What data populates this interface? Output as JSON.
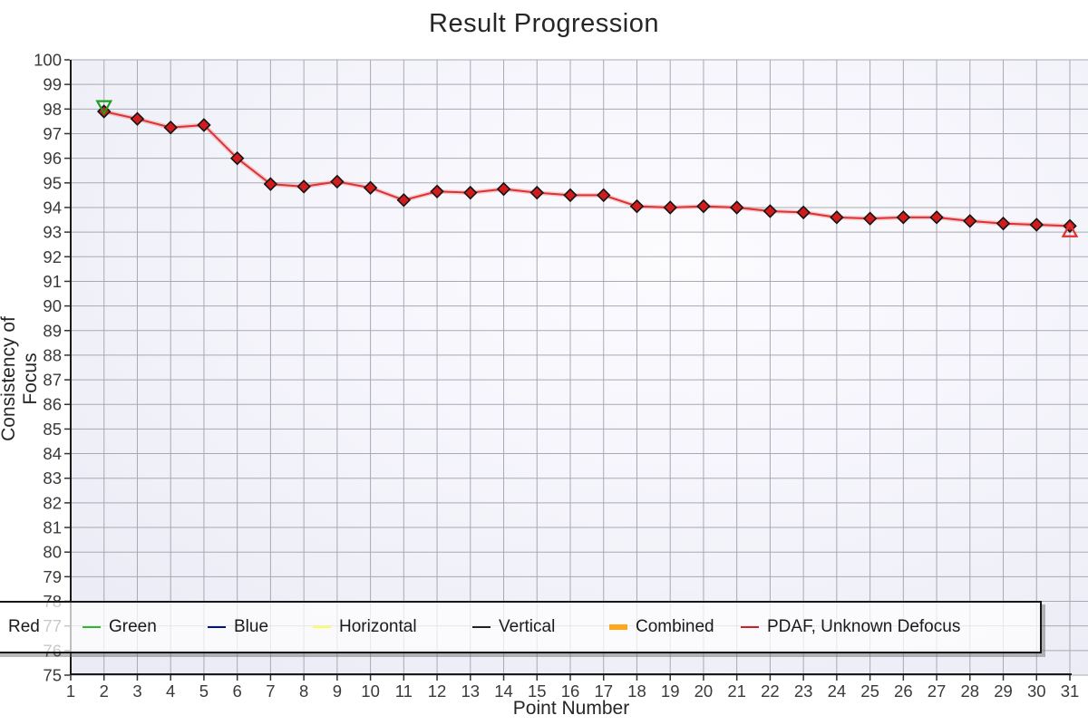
{
  "title": "Result Progression",
  "axes": {
    "x_label": "Point Number",
    "y_label": "Consistency of Focus",
    "x_ticks": [
      1,
      2,
      3,
      4,
      5,
      6,
      7,
      8,
      9,
      10,
      11,
      12,
      13,
      14,
      15,
      16,
      17,
      18,
      19,
      20,
      21,
      22,
      23,
      24,
      25,
      26,
      27,
      28,
      29,
      30,
      31
    ],
    "y_ticks": [
      75,
      76,
      77,
      78,
      79,
      80,
      81,
      82,
      83,
      84,
      85,
      86,
      87,
      88,
      89,
      90,
      91,
      92,
      93,
      94,
      95,
      96,
      97,
      98,
      99,
      100
    ]
  },
  "legend": {
    "items": [
      {
        "label": "Red",
        "color": "#e03030",
        "thick": false
      },
      {
        "label": "Green",
        "color": "#2eb82e",
        "thick": false
      },
      {
        "label": "Blue",
        "color": "#00128b",
        "thick": false
      },
      {
        "label": "Horizontal",
        "color": "#ffff4d",
        "thick": false
      },
      {
        "label": "Vertical",
        "color": "#222222",
        "thick": false
      },
      {
        "label": "Combined",
        "color": "#ffa718",
        "thick": true
      },
      {
        "label": "PDAF, Unknown Defocus",
        "color": "#cc2222",
        "thick": false
      }
    ]
  },
  "chart_data": {
    "type": "line",
    "title": "Result Progression",
    "xlabel": "Point Number",
    "ylabel": "Consistency of Focus",
    "xlim": [
      1,
      31
    ],
    "ylim": [
      75,
      100
    ],
    "grid": true,
    "legend_position": "bottom",
    "series": [
      {
        "name": "PDAF, Unknown Defocus",
        "line_color": "#e03030",
        "marker": "diamond",
        "marker_fill": "#d01c1c",
        "marker_edge": "#141414",
        "x": [
          2,
          3,
          4,
          5,
          6,
          7,
          8,
          9,
          10,
          11,
          12,
          13,
          14,
          15,
          16,
          17,
          18,
          19,
          20,
          21,
          22,
          23,
          24,
          25,
          26,
          27,
          28,
          29,
          30,
          31
        ],
        "values": [
          97.9,
          97.6,
          97.25,
          97.35,
          96.0,
          94.95,
          94.85,
          95.05,
          94.8,
          94.3,
          94.65,
          94.6,
          94.75,
          94.6,
          94.5,
          94.5,
          94.05,
          94.0,
          94.05,
          94.0,
          93.85,
          93.8,
          93.6,
          93.55,
          93.6,
          93.6,
          93.45,
          93.35,
          93.3,
          93.25
        ]
      }
    ],
    "annotations": [
      {
        "shape": "triangle-down",
        "x": 2,
        "y": 98.1,
        "color": "#1f9e1f",
        "name": "green-start-marker"
      },
      {
        "shape": "triangle-up",
        "x": 31,
        "y": 93.05,
        "color": "#e03030",
        "name": "red-end-marker"
      }
    ]
  },
  "colors": {
    "grid_line": "#a9a9b4",
    "axis_line": "#1a1a1a",
    "tick_label": "#3a3a3a",
    "plot_bg_outer": "#ebebf6",
    "plot_bg_inner": "#fcfcff"
  }
}
